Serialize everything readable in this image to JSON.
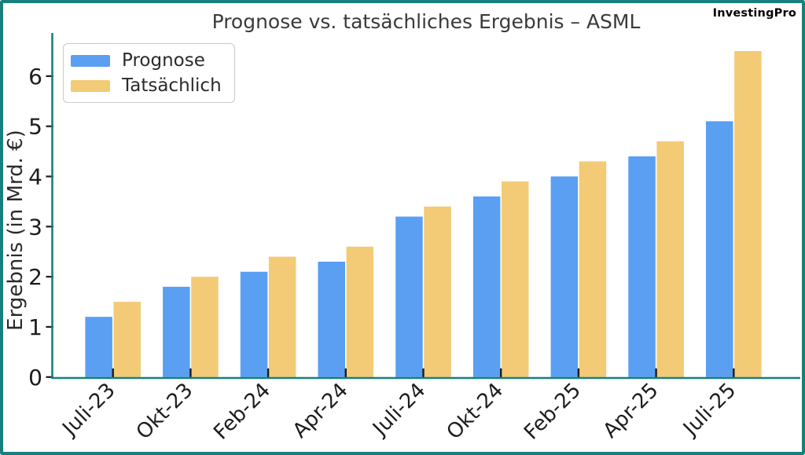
{
  "branding": {
    "label": "InvestingPro"
  },
  "chart_data": {
    "type": "bar",
    "title": "Prognose vs. tatsächliches Ergebnis – ASML",
    "xlabel": "",
    "ylabel": "Ergebnis (in Mrd. €)",
    "categories": [
      "Juli-23",
      "Okt-23",
      "Feb-24",
      "Apr-24",
      "Juli-24",
      "Okt-24",
      "Feb-25",
      "Apr-25",
      "Juli-25"
    ],
    "series": [
      {
        "name": "Prognose",
        "color": "#5A9FF2",
        "values": [
          1.2,
          1.8,
          2.1,
          2.3,
          3.2,
          3.6,
          4.0,
          4.4,
          5.1
        ]
      },
      {
        "name": "Tatsächlich",
        "color": "#F3CA76",
        "values": [
          1.5,
          2.0,
          2.4,
          2.6,
          3.4,
          3.9,
          4.3,
          4.7,
          6.5
        ]
      }
    ],
    "yticks": [
      0,
      1,
      2,
      3,
      4,
      5,
      6
    ],
    "ylim": [
      0,
      6.85
    ],
    "grid": false,
    "legend_position": "upper left",
    "colors": {
      "frame_border": "#17807D",
      "spine": "#17807D",
      "tick": "#1C1C1C",
      "tick_label": "#1C1C1C",
      "title_text": "#3A3A3A"
    }
  }
}
